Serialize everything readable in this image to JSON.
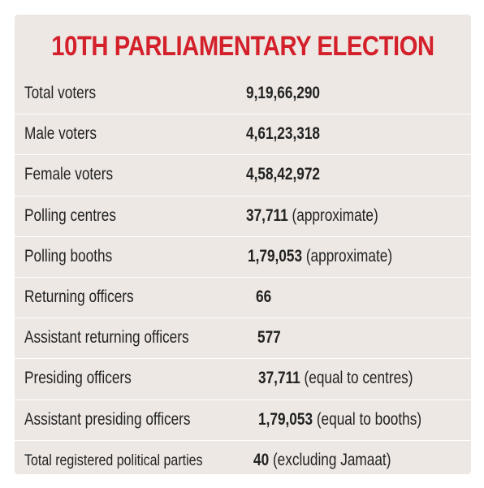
{
  "title": "10TH PARLIAMENTARY ELECTION",
  "rows": [
    {
      "label": "Total voters",
      "value": "9,19,66,290",
      "note": ""
    },
    {
      "label": "Male voters",
      "value": "4,61,23,318",
      "note": ""
    },
    {
      "label": "Female voters",
      "value": "4,58,42,972",
      "note": ""
    },
    {
      "label": "Polling centres",
      "value": "37,711",
      "note": "(approximate)"
    },
    {
      "label": "Polling booths",
      "value": "1,79,053",
      "note": "(approximate)"
    },
    {
      "label": "Returning officers",
      "value": "66",
      "note": ""
    },
    {
      "label": "Assistant returning officers",
      "value": "577",
      "note": ""
    },
    {
      "label": "Presiding officers",
      "value": "37,711",
      "note": "(equal to centres)"
    },
    {
      "label": "Assistant presiding officers",
      "value": "1,79,053",
      "note": "(equal to booths)"
    },
    {
      "label": "Total registered political parties",
      "value": "40",
      "note": "(excluding Jamaat)"
    }
  ]
}
